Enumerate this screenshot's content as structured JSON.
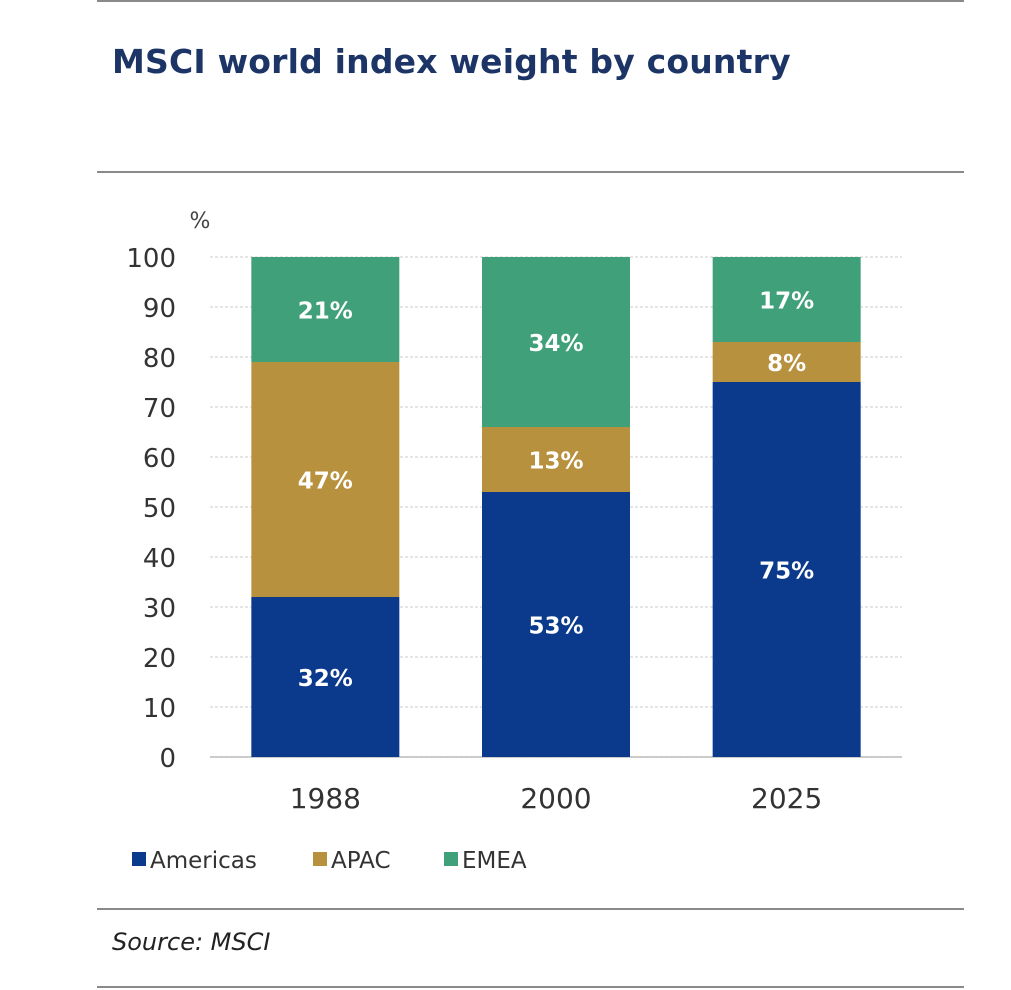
{
  "title": "MSCI world index weight by country",
  "source": "Source: MSCI",
  "chart_data": {
    "type": "bar",
    "stacked": true,
    "title": "MSCI world index weight by country",
    "unit_label": "%",
    "xlabel": "",
    "ylabel": "%",
    "ylim": [
      0,
      100
    ],
    "yticks": [
      0,
      10,
      20,
      30,
      40,
      50,
      60,
      70,
      80,
      90,
      100
    ],
    "grid": true,
    "legend_position": "bottom-left",
    "categories": [
      "1988",
      "2000",
      "2025"
    ],
    "series": [
      {
        "name": "Americas",
        "color": "#0b3a8c",
        "values": [
          32,
          53,
          75
        ],
        "labels": [
          "32%",
          "53%",
          "75%"
        ]
      },
      {
        "name": "APAC",
        "color": "#b8913f",
        "values": [
          47,
          13,
          8
        ],
        "labels": [
          "47%",
          "13%",
          "8%"
        ]
      },
      {
        "name": "EMEA",
        "color": "#3fa07a",
        "values": [
          21,
          34,
          17
        ],
        "labels": [
          "21%",
          "34%",
          "17%"
        ]
      }
    ]
  }
}
